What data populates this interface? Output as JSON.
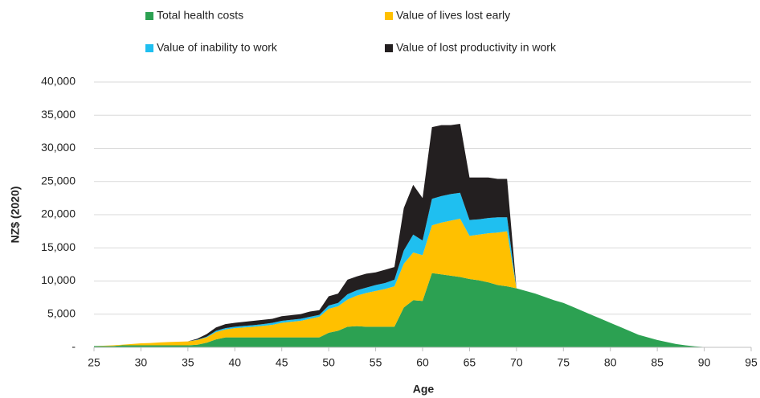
{
  "chart_data": {
    "type": "stacked_area",
    "x": [
      25,
      26,
      27,
      28,
      29,
      30,
      31,
      32,
      33,
      34,
      35,
      36,
      37,
      38,
      39,
      40,
      41,
      42,
      43,
      44,
      45,
      46,
      47,
      48,
      49,
      50,
      51,
      52,
      53,
      54,
      55,
      56,
      57,
      58,
      59,
      60,
      61,
      62,
      63,
      64,
      65,
      66,
      67,
      68,
      69,
      70,
      71,
      72,
      73,
      74,
      75,
      76,
      77,
      78,
      79,
      80,
      81,
      82,
      83,
      84,
      85,
      86,
      87,
      88,
      89,
      90,
      91
    ],
    "series": [
      {
        "name": "Total health costs",
        "color": "#2ca152",
        "values": [
          200,
          200,
          200,
          300,
          300,
          300,
          300,
          300,
          300,
          300,
          300,
          400,
          700,
          1200,
          1500,
          1500,
          1500,
          1500,
          1500,
          1500,
          1500,
          1500,
          1500,
          1500,
          1500,
          2200,
          2500,
          3100,
          3200,
          3100,
          3100,
          3100,
          3100,
          6000,
          7100,
          7000,
          11200,
          11000,
          10800,
          10600,
          10300,
          10100,
          9800,
          9400,
          9200,
          8900,
          8500,
          8100,
          7600,
          7100,
          6700,
          6100,
          5500,
          4900,
          4300,
          3700,
          3100,
          2500,
          1900,
          1500,
          1100,
          800,
          500,
          300,
          150,
          50,
          0
        ]
      },
      {
        "name": "Value of lives lost early",
        "color": "#ffc000",
        "values": [
          0,
          50,
          100,
          100,
          200,
          300,
          350,
          450,
          500,
          550,
          600,
          700,
          800,
          1100,
          1200,
          1400,
          1500,
          1600,
          1750,
          1900,
          2200,
          2350,
          2500,
          2800,
          3100,
          3600,
          3700,
          4100,
          4600,
          5100,
          5400,
          5700,
          6100,
          6600,
          7200,
          6900,
          7200,
          7800,
          8300,
          8800,
          6500,
          6900,
          7400,
          7900,
          8300,
          0,
          0,
          0,
          0,
          0,
          0,
          0,
          0,
          0,
          0,
          0,
          0,
          0,
          0,
          0,
          0,
          0,
          0,
          0,
          0,
          0,
          0
        ]
      },
      {
        "name": "Value of inability to work",
        "color": "#1fbff0",
        "values": [
          0,
          0,
          0,
          0,
          0,
          0,
          0,
          0,
          0,
          0,
          0,
          50,
          100,
          200,
          200,
          200,
          250,
          250,
          250,
          300,
          300,
          300,
          300,
          300,
          300,
          500,
          500,
          800,
          800,
          800,
          900,
          900,
          1000,
          2000,
          2700,
          2200,
          4000,
          4000,
          4000,
          3900,
          2400,
          2300,
          2300,
          2300,
          2100,
          0,
          0,
          0,
          0,
          0,
          0,
          0,
          0,
          0,
          0,
          0,
          0,
          0,
          0,
          0,
          0,
          0,
          0,
          0,
          0,
          0,
          0
        ]
      },
      {
        "name": "Value of lost productivity in work",
        "color": "#231f20",
        "values": [
          0,
          0,
          0,
          0,
          0,
          0,
          0,
          0,
          0,
          0,
          0,
          150,
          400,
          500,
          600,
          600,
          600,
          650,
          650,
          600,
          700,
          700,
          700,
          800,
          700,
          1400,
          1400,
          2200,
          2100,
          2100,
          1900,
          2000,
          1900,
          6400,
          7500,
          6400,
          10800,
          10700,
          10400,
          10400,
          6400,
          6300,
          6100,
          5800,
          5800,
          0,
          0,
          0,
          0,
          0,
          0,
          0,
          0,
          0,
          0,
          0,
          0,
          0,
          0,
          0,
          0,
          0,
          0,
          0,
          0,
          0,
          0
        ]
      }
    ],
    "xlabel": "Age",
    "ylabel": "NZ$ (2020)",
    "xlim": [
      25,
      95
    ],
    "xticks": [
      25,
      30,
      35,
      40,
      45,
      50,
      55,
      60,
      65,
      70,
      75,
      80,
      85,
      90,
      95
    ],
    "ylim": [
      0,
      40000
    ],
    "yticks": [
      {
        "value": 0,
        "label": "-"
      },
      {
        "value": 5000,
        "label": "5,000"
      },
      {
        "value": 10000,
        "label": "10,000"
      },
      {
        "value": 15000,
        "label": "15,000"
      },
      {
        "value": 20000,
        "label": "20,000"
      },
      {
        "value": 25000,
        "label": "25,000"
      },
      {
        "value": 30000,
        "label": "30,000"
      },
      {
        "value": 35000,
        "label": "35,000"
      },
      {
        "value": 40000,
        "label": "40,000"
      }
    ],
    "grid": true,
    "legend": "top"
  }
}
